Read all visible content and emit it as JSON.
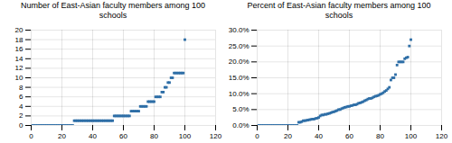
{
  "chart_data": [
    {
      "type": "scatter",
      "title": "Number of East-Asian faculty members among 100\nschools",
      "x": [
        1,
        2,
        3,
        4,
        5,
        6,
        7,
        8,
        9,
        10,
        11,
        12,
        13,
        14,
        15,
        16,
        17,
        18,
        19,
        20,
        21,
        22,
        23,
        24,
        25,
        26,
        27,
        28,
        29,
        30,
        31,
        32,
        33,
        34,
        35,
        36,
        37,
        38,
        39,
        40,
        41,
        42,
        43,
        44,
        45,
        46,
        47,
        48,
        49,
        50,
        51,
        52,
        53,
        54,
        55,
        56,
        57,
        58,
        59,
        60,
        61,
        62,
        63,
        64,
        65,
        66,
        67,
        68,
        69,
        70,
        71,
        72,
        73,
        74,
        75,
        76,
        77,
        78,
        79,
        80,
        81,
        82,
        83,
        84,
        85,
        86,
        87,
        88,
        89,
        90,
        91,
        92,
        93,
        94,
        95,
        96,
        97,
        98,
        99,
        100
      ],
      "values": [
        0,
        0,
        0,
        0,
        0,
        0,
        0,
        0,
        0,
        0,
        0,
        0,
        0,
        0,
        0,
        0,
        0,
        0,
        0,
        0,
        0,
        0,
        0,
        0,
        0,
        0,
        0,
        1,
        1,
        1,
        1,
        1,
        1,
        1,
        1,
        1,
        1,
        1,
        1,
        1,
        1,
        1,
        1,
        1,
        1,
        1,
        1,
        1,
        1,
        1,
        1,
        1,
        1,
        2,
        2,
        2,
        2,
        2,
        2,
        2,
        2,
        2,
        2,
        2,
        3,
        3,
        3,
        3,
        3,
        3,
        4,
        4,
        4,
        4,
        4,
        5,
        5,
        5,
        5,
        5,
        6,
        6,
        6,
        6,
        7,
        7,
        8,
        8,
        9,
        9,
        10,
        10,
        11,
        11,
        11,
        11,
        11,
        11,
        11,
        18
      ],
      "color": "#2e6ea6",
      "marker": "square",
      "xlim": [
        0,
        120
      ],
      "xticks": [
        0,
        20,
        40,
        60,
        80,
        100,
        120
      ],
      "ylim": [
        0,
        20
      ],
      "yticks": [
        0,
        2,
        4,
        6,
        8,
        10,
        12,
        14,
        16,
        18,
        20
      ],
      "grid": true
    },
    {
      "type": "scatter",
      "title": "Percent of East-Asian faculty members among 100\nschools",
      "x": [
        1,
        2,
        3,
        4,
        5,
        6,
        7,
        8,
        9,
        10,
        11,
        12,
        13,
        14,
        15,
        16,
        17,
        18,
        19,
        20,
        21,
        22,
        23,
        24,
        25,
        26,
        27,
        28,
        29,
        30,
        31,
        32,
        33,
        34,
        35,
        36,
        37,
        38,
        39,
        40,
        41,
        42,
        43,
        44,
        45,
        46,
        47,
        48,
        49,
        50,
        51,
        52,
        53,
        54,
        55,
        56,
        57,
        58,
        59,
        60,
        61,
        62,
        63,
        64,
        65,
        66,
        67,
        68,
        69,
        70,
        71,
        72,
        73,
        74,
        75,
        76,
        77,
        78,
        79,
        80,
        81,
        82,
        83,
        84,
        85,
        86,
        87,
        88,
        89,
        90,
        91,
        92,
        93,
        94,
        95,
        96,
        97,
        98,
        99,
        100
      ],
      "values": [
        0.0,
        0.0,
        0.0,
        0.0,
        0.0,
        0.0,
        0.0,
        0.0,
        0.0,
        0.0,
        0.0,
        0.0,
        0.0,
        0.0,
        0.0,
        0.0,
        0.0,
        0.0,
        0.0,
        0.0,
        0.0,
        0.0,
        0.0,
        0.0,
        0.0,
        0.0,
        0.01,
        0.01,
        0.012,
        0.015,
        0.015,
        0.016,
        0.017,
        0.018,
        0.019,
        0.02,
        0.02,
        0.022,
        0.023,
        0.025,
        0.03,
        0.033,
        0.033,
        0.035,
        0.035,
        0.037,
        0.038,
        0.04,
        0.042,
        0.043,
        0.045,
        0.047,
        0.05,
        0.05,
        0.053,
        0.055,
        0.057,
        0.058,
        0.06,
        0.06,
        0.062,
        0.063,
        0.065,
        0.065,
        0.067,
        0.07,
        0.071,
        0.073,
        0.075,
        0.078,
        0.08,
        0.083,
        0.085,
        0.085,
        0.087,
        0.09,
        0.092,
        0.093,
        0.095,
        0.098,
        0.1,
        0.103,
        0.107,
        0.11,
        0.115,
        0.12,
        0.143,
        0.15,
        0.15,
        0.16,
        0.19,
        0.2,
        0.2,
        0.2,
        0.2,
        0.21,
        0.213,
        0.215,
        0.25,
        0.27
      ],
      "color": "#2e6ea6",
      "marker": "square",
      "xlim": [
        0,
        120
      ],
      "xticks": [
        0,
        20,
        40,
        60,
        80,
        100,
        120
      ],
      "ylim": [
        0,
        0.3
      ],
      "yticks": [
        {
          "value": 0.0,
          "label": "0.0%"
        },
        {
          "value": 0.05,
          "label": "5.0%"
        },
        {
          "value": 0.1,
          "label": "10.0%"
        },
        {
          "value": 0.15,
          "label": "15.0%"
        },
        {
          "value": 0.2,
          "label": "20.0%"
        },
        {
          "value": 0.25,
          "label": "25.0%"
        },
        {
          "value": 0.3,
          "label": "30.0%"
        }
      ],
      "grid": true
    }
  ]
}
